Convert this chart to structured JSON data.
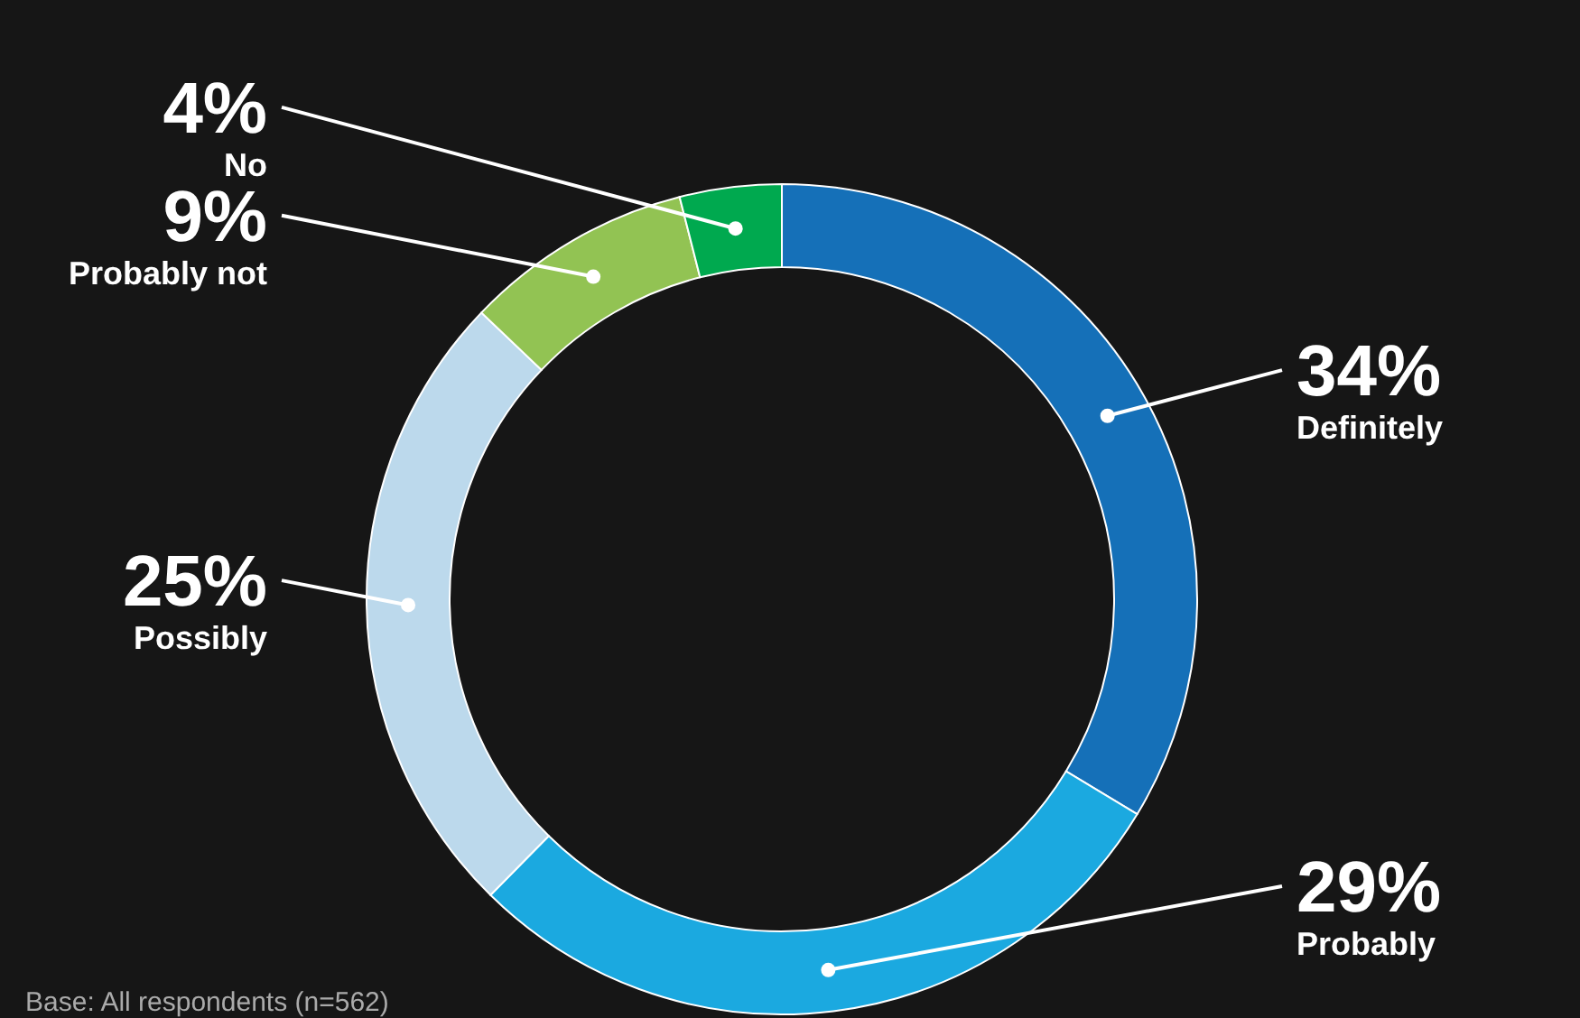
{
  "chart_data": {
    "type": "donut",
    "categories": [
      "Definitely",
      "Probably",
      "Possibly",
      "Probably not",
      "No"
    ],
    "values": [
      34,
      29,
      25,
      9,
      4
    ],
    "value_labels": [
      "34%",
      "29%",
      "25%",
      "9%",
      "4%"
    ],
    "colors": [
      "#1570b8",
      "#1ba9e0",
      "#bcd9ec",
      "#92c353",
      "#00a94f"
    ],
    "annotations": [
      "Base: All respondents (n=562)"
    ]
  }
}
